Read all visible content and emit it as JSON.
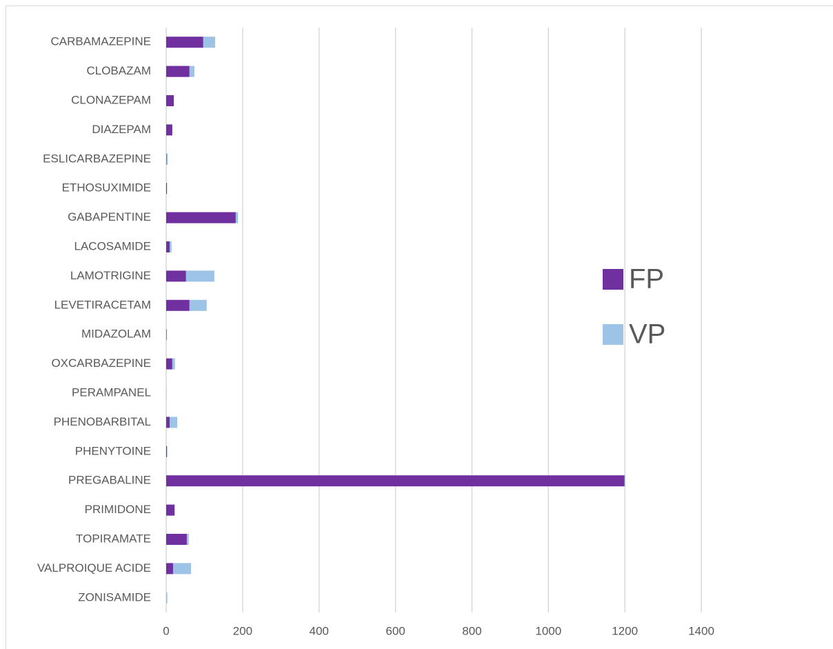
{
  "chart_data": {
    "type": "stacked-horizontal-bar",
    "categories": [
      "CARBAMAZEPINE",
      "CLOBAZAM",
      "CLONAZEPAM",
      "DIAZEPAM",
      "ESLICARBAZEPINE",
      "ETHOSUXIMIDE",
      "GABAPENTINE",
      "LACOSAMIDE",
      "LAMOTRIGINE",
      "LEVETIRACETAM",
      "MIDAZOLAM",
      "OXCARBAZEPINE",
      "PERAMPANEL",
      "PHENOBARBITAL",
      "PHENYTOINE",
      "PREGABALINE",
      "PRIMIDONE",
      "TOPIRAMATE",
      "VALPROIQUE ACIDE",
      "ZONISAMIDE"
    ],
    "series": [
      {
        "name": "FP",
        "color": "#7030a0",
        "values": [
          97,
          61,
          20,
          16,
          1,
          2,
          182,
          9,
          52,
          61,
          1,
          16,
          0,
          9,
          2,
          1199,
          22,
          54,
          18,
          0
        ]
      },
      {
        "name": "VP",
        "color": "#9dc3e6",
        "values": [
          31,
          13,
          0,
          0,
          3,
          0,
          6,
          5,
          74,
          45,
          1,
          7,
          1,
          20,
          1,
          2,
          0,
          5,
          47,
          3
        ]
      }
    ],
    "xlim": [
      0,
      1400
    ],
    "xticks": [
      0,
      200,
      400,
      600,
      800,
      1000,
      1200,
      1400
    ],
    "grid": true,
    "legend": "right"
  }
}
